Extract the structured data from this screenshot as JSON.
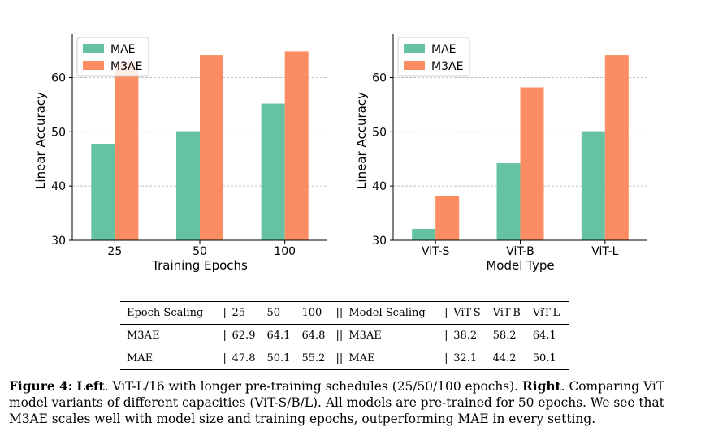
{
  "chart_data": [
    {
      "type": "bar",
      "title": "",
      "xlabel": "Training Epochs",
      "ylabel": "Linear Accuracy",
      "categories": [
        "25",
        "50",
        "100"
      ],
      "series": [
        {
          "name": "MAE",
          "values": [
            47.8,
            50.1,
            55.2
          ],
          "color": "#66c2a5"
        },
        {
          "name": "M3AE",
          "values": [
            62.9,
            64.1,
            64.8
          ],
          "color": "#fc8d62"
        }
      ],
      "ylim": [
        30,
        68
      ],
      "yticks": [
        30,
        40,
        50,
        60
      ],
      "grid": true,
      "legend": "top-left"
    },
    {
      "type": "bar",
      "title": "",
      "xlabel": "Model Type",
      "ylabel": "Linear Accuracy",
      "categories": [
        "ViT-S",
        "ViT-B",
        "ViT-L"
      ],
      "series": [
        {
          "name": "MAE",
          "values": [
            32.1,
            44.2,
            50.1
          ],
          "color": "#66c2a5"
        },
        {
          "name": "M3AE",
          "values": [
            38.2,
            58.2,
            64.1
          ],
          "color": "#fc8d62"
        }
      ],
      "ylim": [
        30,
        68
      ],
      "yticks": [
        30,
        40,
        50,
        60
      ],
      "grid": true,
      "legend": "top-left"
    }
  ],
  "table": {
    "header": [
      "Epoch Scaling",
      "|",
      "25",
      "50",
      "100",
      "||",
      "Model Scaling",
      "|",
      "ViT-S",
      "ViT-B",
      "ViT-L"
    ],
    "rows": [
      [
        "M3AE",
        "|",
        "62.9",
        "64.1",
        "64.8",
        "||",
        "M3AE",
        "|",
        "38.2",
        "58.2",
        "64.1"
      ],
      [
        "MAE",
        "|",
        "47.8",
        "50.1",
        "55.2",
        "||",
        "MAE",
        "|",
        "32.1",
        "44.2",
        "50.1"
      ]
    ]
  },
  "caption": {
    "label": "Figure 4:",
    "left_bold": "Left",
    "left_text": ". ViT-L/16 with longer pre-training schedules (25/50/100 epochs). ",
    "right_bold": "Right",
    "right_text": ". Comparing ViT model variants of different capacities (ViT-S/B/L). All models are pre-trained for 50 epochs. We see that M3AE scales well with model size and training epochs, outperforming MAE in every setting."
  }
}
